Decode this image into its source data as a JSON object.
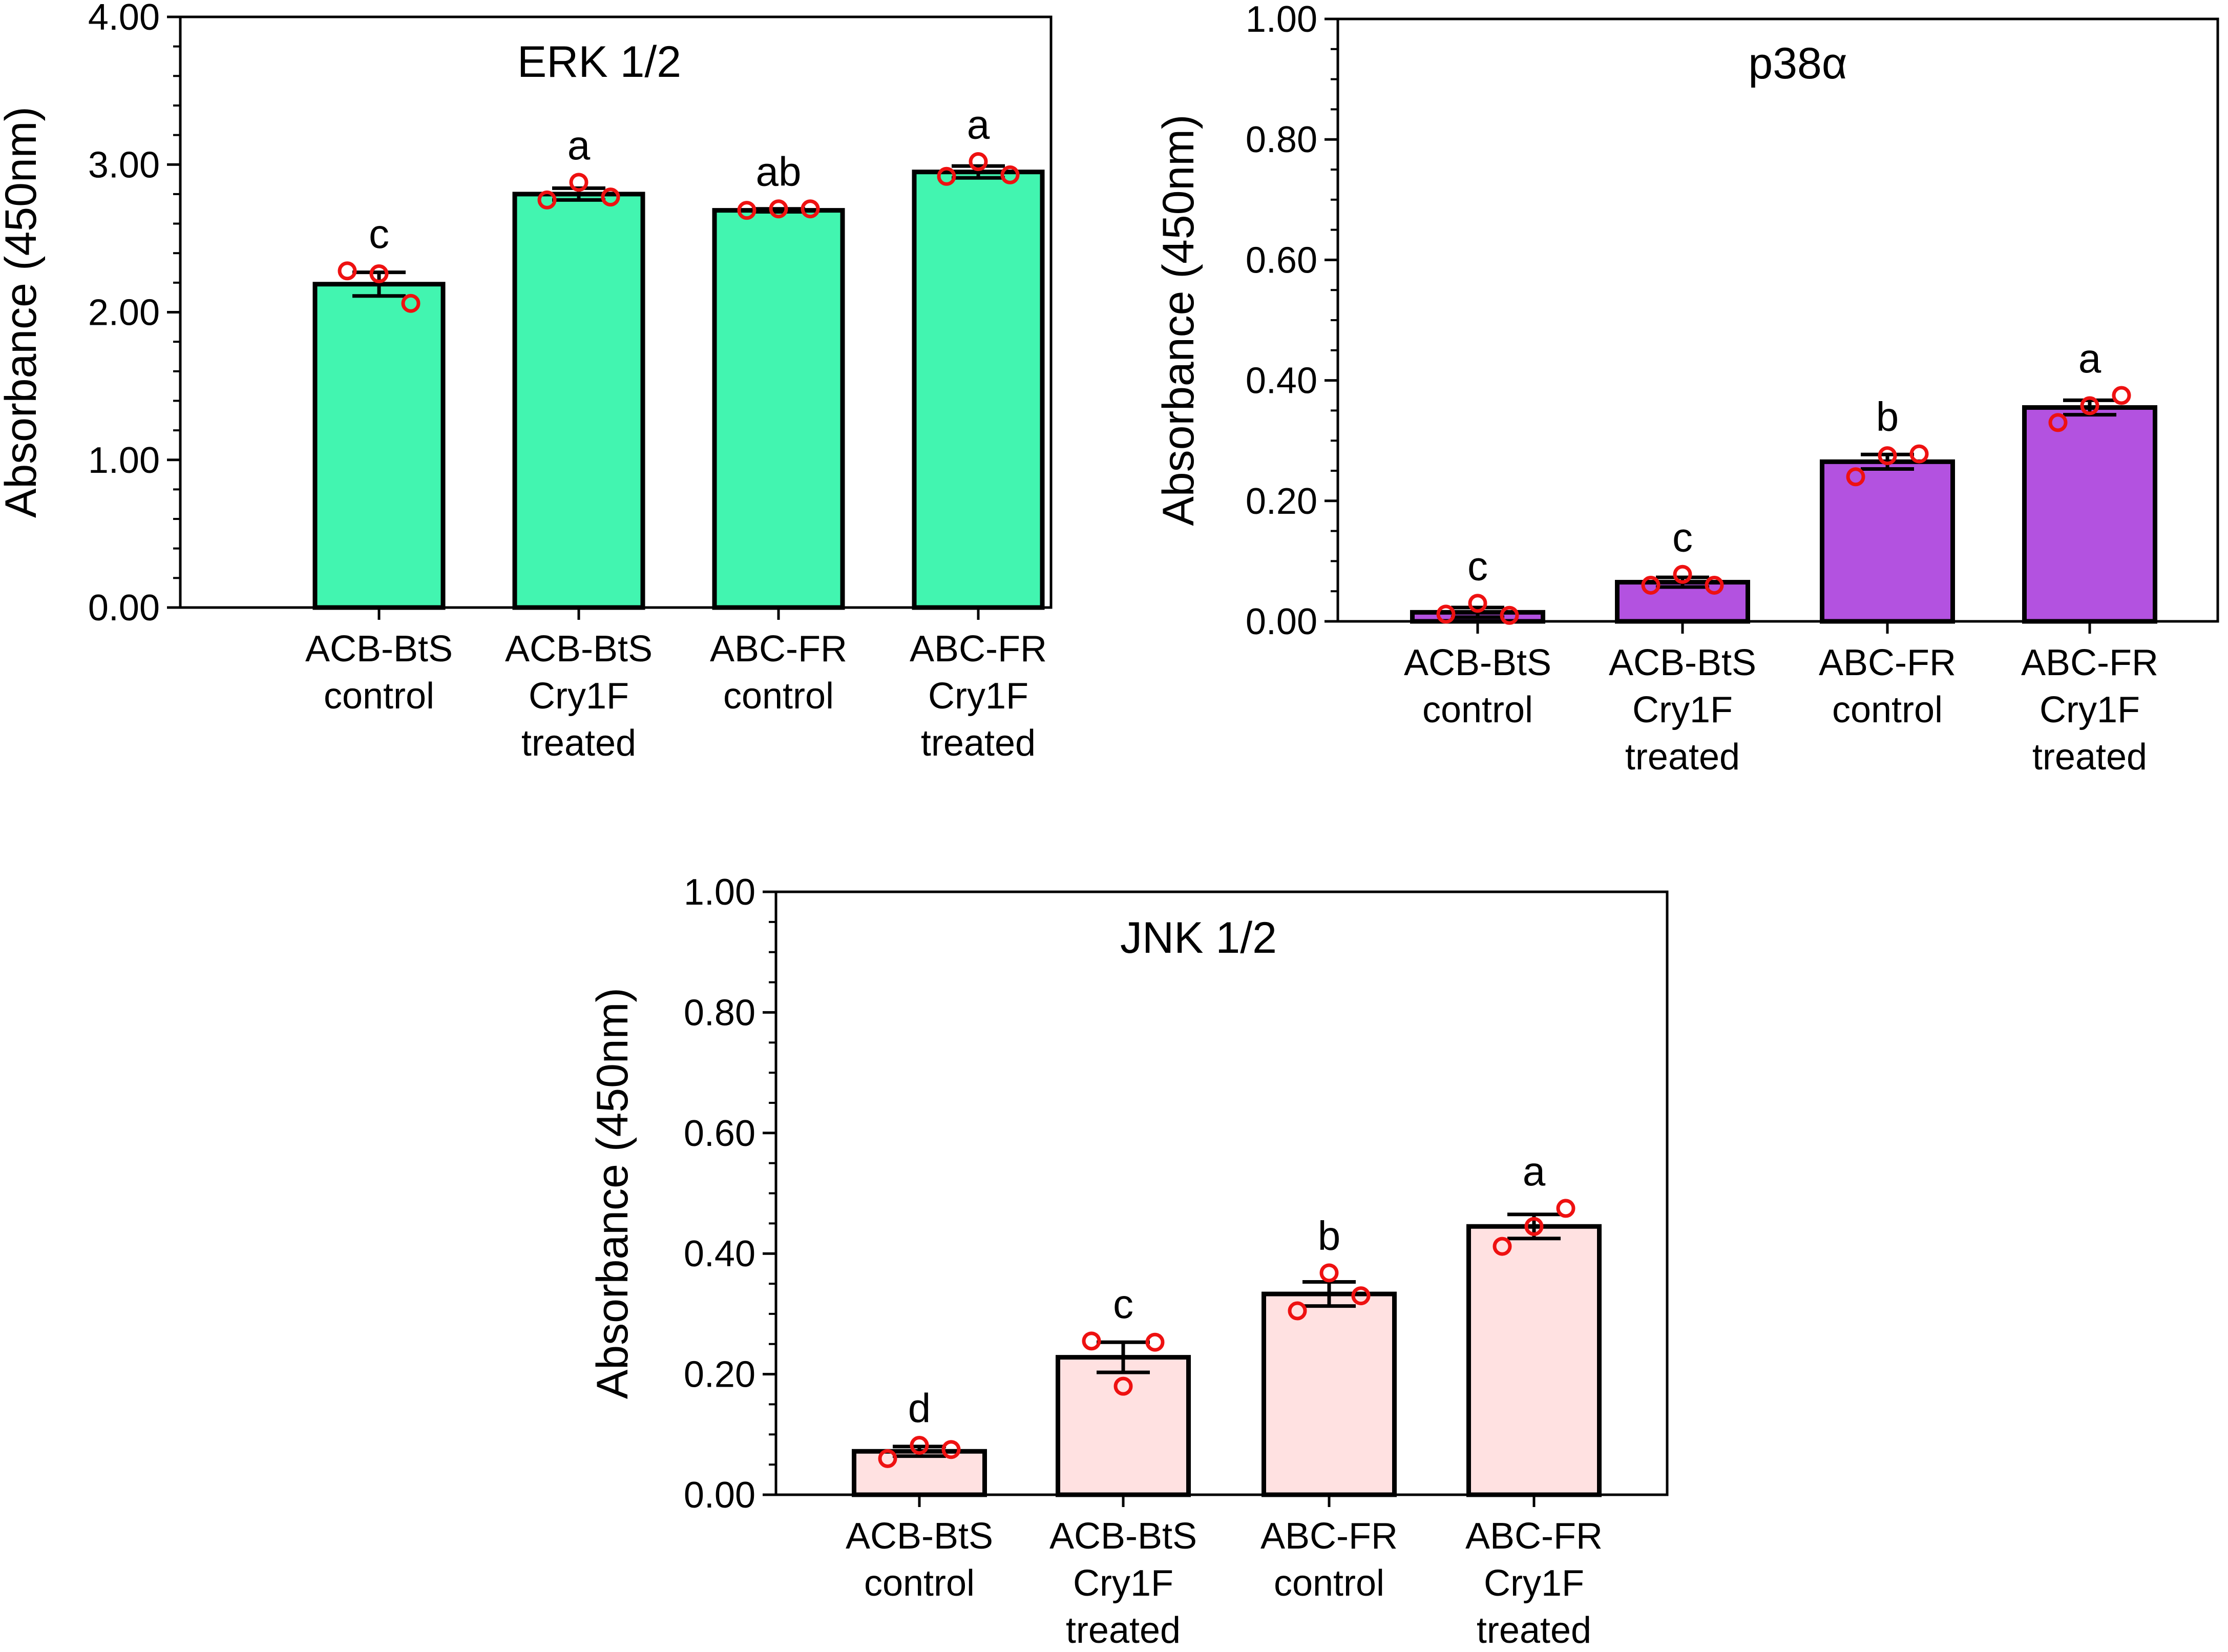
{
  "chart_data": [
    {
      "type": "bar",
      "title": "ERK 1/2",
      "ylabel": "Absorbance (450nm)",
      "xlabel": "",
      "ylim": [
        0,
        4
      ],
      "yticks": [
        "0.00",
        "1.00",
        "2.00",
        "3.00",
        "4.00"
      ],
      "categories": [
        [
          "ACB-BtS",
          "control"
        ],
        [
          "ACB-BtS",
          "Cry1F",
          "treated"
        ],
        [
          "ABC-FR",
          "control"
        ],
        [
          "ABC-FR",
          "Cry1F",
          "treated"
        ]
      ],
      "values": [
        2.19,
        2.8,
        2.69,
        2.95
      ],
      "sem": [
        0.08,
        0.04,
        0.01,
        0.04
      ],
      "points": [
        [
          2.28,
          2.26,
          2.06
        ],
        [
          2.76,
          2.88,
          2.78
        ],
        [
          2.69,
          2.7,
          2.7
        ],
        [
          2.92,
          3.02,
          2.93
        ]
      ],
      "significance": [
        "c",
        "a",
        "ab",
        "a"
      ],
      "bar_color": "#42f5b0"
    },
    {
      "type": "bar",
      "title": "p38α",
      "ylabel": "Absorbance (450nm)",
      "xlabel": "",
      "ylim": [
        0,
        1
      ],
      "yticks": [
        "0.00",
        "0.20",
        "0.40",
        "0.60",
        "0.80",
        "1.00"
      ],
      "categories": [
        [
          "ACB-BtS",
          "control"
        ],
        [
          "ACB-BtS",
          "Cry1F",
          "treated"
        ],
        [
          "ABC-FR",
          "control"
        ],
        [
          "ABC-FR",
          "Cry1F",
          "treated"
        ]
      ],
      "values": [
        0.015,
        0.065,
        0.265,
        0.355
      ],
      "sem": [
        0.008,
        0.008,
        0.012,
        0.012
      ],
      "points": [
        [
          0.012,
          0.03,
          0.01
        ],
        [
          0.06,
          0.078,
          0.06
        ],
        [
          0.24,
          0.275,
          0.278
        ],
        [
          0.33,
          0.358,
          0.375
        ]
      ],
      "significance": [
        "c",
        "c",
        "b",
        "a"
      ],
      "bar_color": "#b352e0"
    },
    {
      "type": "bar",
      "title": "JNK 1/2",
      "ylabel": "Absorbance (450nm)",
      "xlabel": "",
      "ylim": [
        0,
        1
      ],
      "yticks": [
        "0.00",
        "0.20",
        "0.40",
        "0.60",
        "0.80",
        "1.00"
      ],
      "categories": [
        [
          "ACB-BtS",
          "control"
        ],
        [
          "ACB-BtS",
          "Cry1F",
          "treated"
        ],
        [
          "ABC-FR",
          "control"
        ],
        [
          "ABC-FR",
          "Cry1F",
          "treated"
        ]
      ],
      "values": [
        0.072,
        0.228,
        0.333,
        0.445
      ],
      "sem": [
        0.008,
        0.025,
        0.02,
        0.02
      ],
      "points": [
        [
          0.06,
          0.082,
          0.075
        ],
        [
          0.255,
          0.18,
          0.253
        ],
        [
          0.305,
          0.368,
          0.33
        ],
        [
          0.412,
          0.445,
          0.475
        ]
      ],
      "significance": [
        "d",
        "c",
        "b",
        "a"
      ],
      "bar_color": "#ffe1e1"
    }
  ],
  "style": {
    "point_color": "#ee1111",
    "axis_color": "#000000",
    "bar_edge_color": "#000000"
  }
}
